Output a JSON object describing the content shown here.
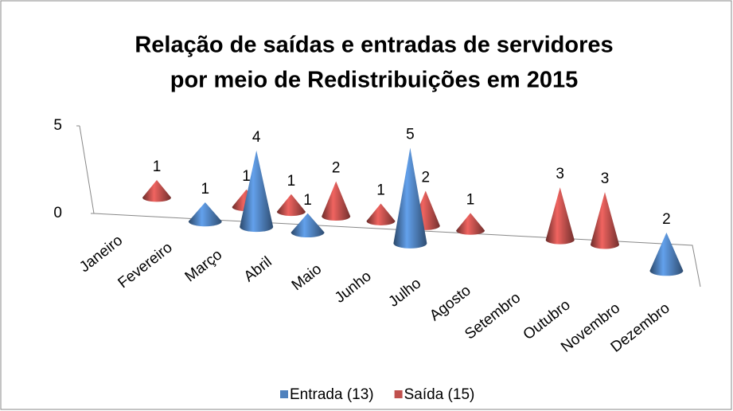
{
  "chart_data": {
    "type": "cone3d",
    "title": [
      "Relação de saídas e entradas de servidores",
      "por meio de Redistribuições em 2015"
    ],
    "categories": [
      "Janeiro",
      "Fevereiro",
      "Março",
      "Abril",
      "Maio",
      "Junho",
      "Julho",
      "Agosto",
      "Setembro",
      "Outubro",
      "Novembro",
      "Dezembro"
    ],
    "series": [
      {
        "name": "Entrada (13)",
        "color": "#4f81bd",
        "values": [
          0,
          0,
          1,
          4,
          1,
          0,
          5,
          0,
          0,
          0,
          0,
          2
        ]
      },
      {
        "name": "Saída (15)",
        "color": "#c0504d",
        "values": [
          1,
          0,
          1,
          1,
          2,
          1,
          2,
          1,
          0,
          3,
          3,
          0
        ]
      }
    ],
    "ylim": [
      0,
      5
    ],
    "yticks": [
      0,
      5
    ],
    "legend": "bottom"
  }
}
